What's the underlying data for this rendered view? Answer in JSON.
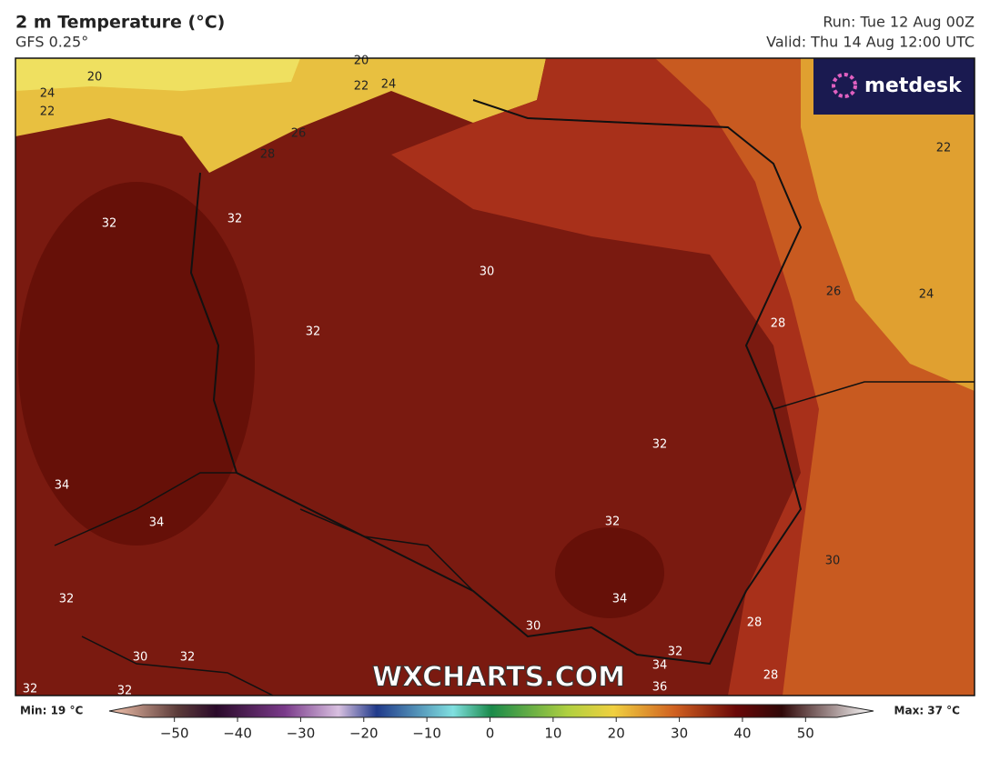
{
  "header": {
    "title": "2 m Temperature (°C)",
    "subtitle": "GFS 0.25°",
    "run": "Run: Tue 12 Aug 00Z",
    "valid": "Valid: Thu 14 Aug 12:00 UTC"
  },
  "logo": "metdesk",
  "watermark": "WXCHARTS.COM",
  "map": {
    "contour_labels": [
      20,
      20,
      24,
      22,
      22,
      24,
      26,
      28,
      32,
      32,
      30,
      32,
      26,
      24,
      28,
      22,
      32,
      34,
      34,
      32,
      30,
      32,
      34,
      30,
      28,
      32,
      30,
      32,
      34,
      28,
      36,
      32,
      32
    ]
  },
  "colorbar": {
    "min_label": "Min: 19 °C",
    "max_label": "Max: 37 °C",
    "ticks": [
      {
        "value": -50,
        "label": "−50"
      },
      {
        "value": -40,
        "label": "−40"
      },
      {
        "value": -30,
        "label": "−30"
      },
      {
        "value": -20,
        "label": "−20"
      },
      {
        "value": -10,
        "label": "−10"
      },
      0,
      10,
      20,
      30,
      40,
      50
    ],
    "range": [
      -55,
      55
    ]
  }
}
